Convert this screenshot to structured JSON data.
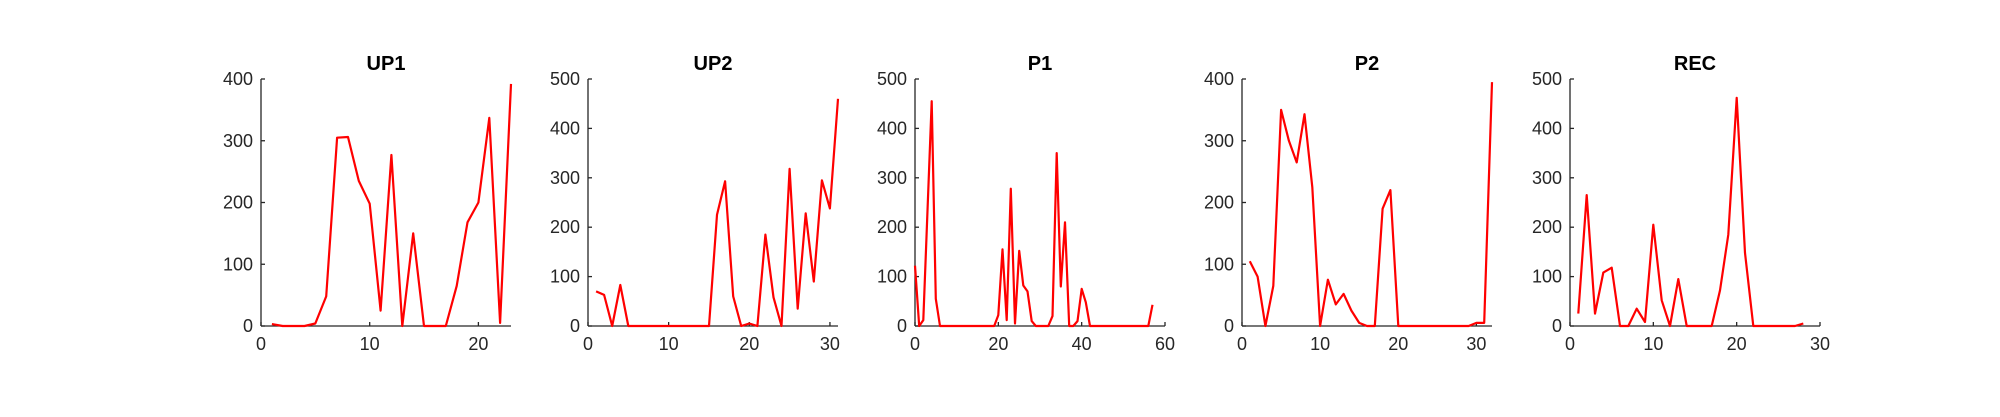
{
  "colors": {
    "series": "#ff0000",
    "axis": "#262626",
    "background": "#ffffff"
  },
  "chart_data": [
    {
      "type": "line",
      "title": "UP1",
      "xlim": [
        0,
        23
      ],
      "ylim": [
        0,
        400
      ],
      "xticks": [
        0,
        10,
        20
      ],
      "yticks": [
        0,
        100,
        200,
        300,
        400
      ],
      "grid": false,
      "series": [
        {
          "x": [
            1,
            2,
            3,
            4,
            5,
            6,
            7,
            8,
            9,
            10,
            11,
            12,
            13,
            14,
            15,
            16,
            17,
            18,
            19,
            20,
            21,
            22,
            23
          ],
          "y": [
            3,
            0,
            0,
            0,
            4,
            48,
            305,
            306,
            235,
            198,
            25,
            277,
            0,
            150,
            0,
            0,
            0,
            65,
            168,
            200,
            337,
            5,
            392
          ]
        }
      ]
    },
    {
      "type": "line",
      "title": "UP2",
      "xlim": [
        0,
        31
      ],
      "ylim": [
        0,
        500
      ],
      "xticks": [
        0,
        10,
        20,
        30
      ],
      "yticks": [
        0,
        100,
        200,
        300,
        400,
        500
      ],
      "grid": false,
      "series": [
        {
          "x": [
            1,
            2,
            3,
            4,
            5,
            6,
            7,
            8,
            9,
            10,
            11,
            12,
            13,
            14,
            15,
            16,
            17,
            18,
            19,
            20,
            21,
            22,
            23,
            24,
            25,
            26,
            27,
            28,
            29,
            30,
            31
          ],
          "y": [
            70,
            63,
            0,
            83,
            0,
            0,
            0,
            0,
            0,
            0,
            0,
            0,
            0,
            0,
            0,
            225,
            293,
            60,
            0,
            5,
            0,
            185,
            58,
            0,
            318,
            35,
            228,
            90,
            295,
            238,
            460
          ]
        }
      ]
    },
    {
      "type": "line",
      "title": "P1",
      "xlim": [
        0,
        60
      ],
      "ylim": [
        0,
        500
      ],
      "xticks": [
        0,
        20,
        40,
        60
      ],
      "yticks": [
        0,
        100,
        200,
        300,
        400,
        500
      ],
      "grid": false,
      "series": [
        {
          "x": [
            0,
            1,
            2,
            4,
            5,
            6,
            7,
            19,
            20,
            21,
            22,
            23,
            24,
            25,
            26,
            27,
            28,
            29,
            30,
            32,
            33,
            34,
            35,
            36,
            37,
            38,
            39,
            40,
            41,
            42,
            43,
            56,
            57
          ],
          "y": [
            122,
            0,
            12,
            455,
            55,
            0,
            0,
            0,
            22,
            155,
            12,
            278,
            5,
            152,
            82,
            70,
            10,
            0,
            0,
            0,
            20,
            350,
            80,
            210,
            0,
            0,
            10,
            75,
            48,
            0,
            0,
            0,
            43
          ]
        }
      ]
    },
    {
      "type": "line",
      "title": "P2",
      "xlim": [
        0,
        32
      ],
      "ylim": [
        0,
        400
      ],
      "xticks": [
        0,
        10,
        20,
        30
      ],
      "yticks": [
        0,
        100,
        200,
        300,
        400
      ],
      "grid": false,
      "series": [
        {
          "x": [
            1,
            2,
            3,
            4,
            5,
            6,
            7,
            8,
            9,
            10,
            11,
            12,
            13,
            14,
            15,
            16,
            17,
            18,
            19,
            20,
            21,
            22,
            23,
            24,
            25,
            26,
            27,
            28,
            29,
            30,
            31,
            32
          ],
          "y": [
            105,
            80,
            0,
            65,
            350,
            300,
            265,
            343,
            225,
            0,
            75,
            35,
            52,
            25,
            5,
            0,
            0,
            190,
            220,
            0,
            0,
            0,
            0,
            0,
            0,
            0,
            0,
            0,
            0,
            5,
            5,
            395
          ]
        }
      ]
    },
    {
      "type": "line",
      "title": "REC",
      "xlim": [
        0,
        30
      ],
      "ylim": [
        0,
        500
      ],
      "xticks": [
        0,
        10,
        20,
        30
      ],
      "yticks": [
        0,
        100,
        200,
        300,
        400,
        500
      ],
      "grid": false,
      "series": [
        {
          "x": [
            1,
            2,
            3,
            4,
            5,
            6,
            7,
            8,
            9,
            10,
            11,
            12,
            13,
            14,
            15,
            16,
            17,
            18,
            19,
            20,
            21,
            22,
            23,
            24,
            25,
            26,
            27,
            28
          ],
          "y": [
            25,
            265,
            25,
            108,
            118,
            0,
            0,
            35,
            8,
            205,
            52,
            0,
            95,
            0,
            0,
            0,
            0,
            72,
            185,
            462,
            148,
            0,
            0,
            0,
            0,
            0,
            0,
            5
          ]
        }
      ]
    }
  ]
}
